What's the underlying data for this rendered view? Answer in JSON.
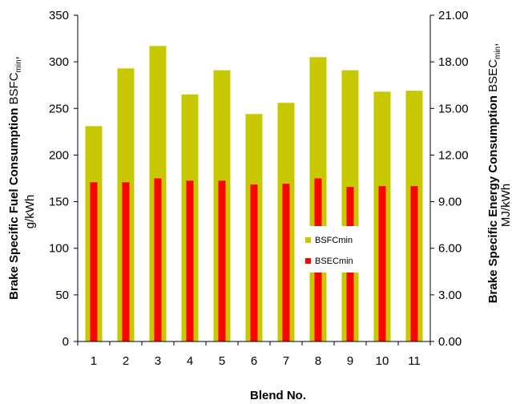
{
  "chart_data": {
    "type": "bar",
    "categories": [
      "1",
      "2",
      "3",
      "4",
      "5",
      "6",
      "7",
      "8",
      "9",
      "10",
      "11"
    ],
    "series": [
      {
        "name": "BSFCmin",
        "axis": "left",
        "values": [
          231,
          293,
          317,
          265,
          291,
          244,
          256,
          305,
          291,
          268,
          269
        ],
        "color": "#c8c800"
      },
      {
        "name": "BSECmin",
        "axis": "right",
        "values": [
          10.25,
          10.25,
          10.5,
          10.35,
          10.35,
          10.1,
          10.15,
          10.5,
          9.95,
          10.0,
          10.0
        ],
        "color": "#ff0000"
      }
    ],
    "xlabel": "Blend No.",
    "ylabel_left": {
      "bold": "Brake Specific Fuel Consumption",
      "normal": "BSFC",
      "sub": "min",
      "after": ",",
      "line2": "g/kWh"
    },
    "ylabel_right": {
      "bold": "Brake Specific Energy Consumption",
      "normal": "BSEC",
      "sub": "min",
      "after": ",",
      "line2": "MJ/kWh"
    },
    "ylim_left": [
      0,
      350
    ],
    "ylim_right": [
      0,
      21
    ],
    "yticks_left": [
      "0",
      "50",
      "100",
      "150",
      "200",
      "250",
      "300",
      "350"
    ],
    "yticks_right": [
      "0.00",
      "3.00",
      "6.00",
      "9.00",
      "12.00",
      "15.00",
      "18.00",
      "21.00"
    ],
    "grid": false,
    "legend_position": "center-right"
  }
}
